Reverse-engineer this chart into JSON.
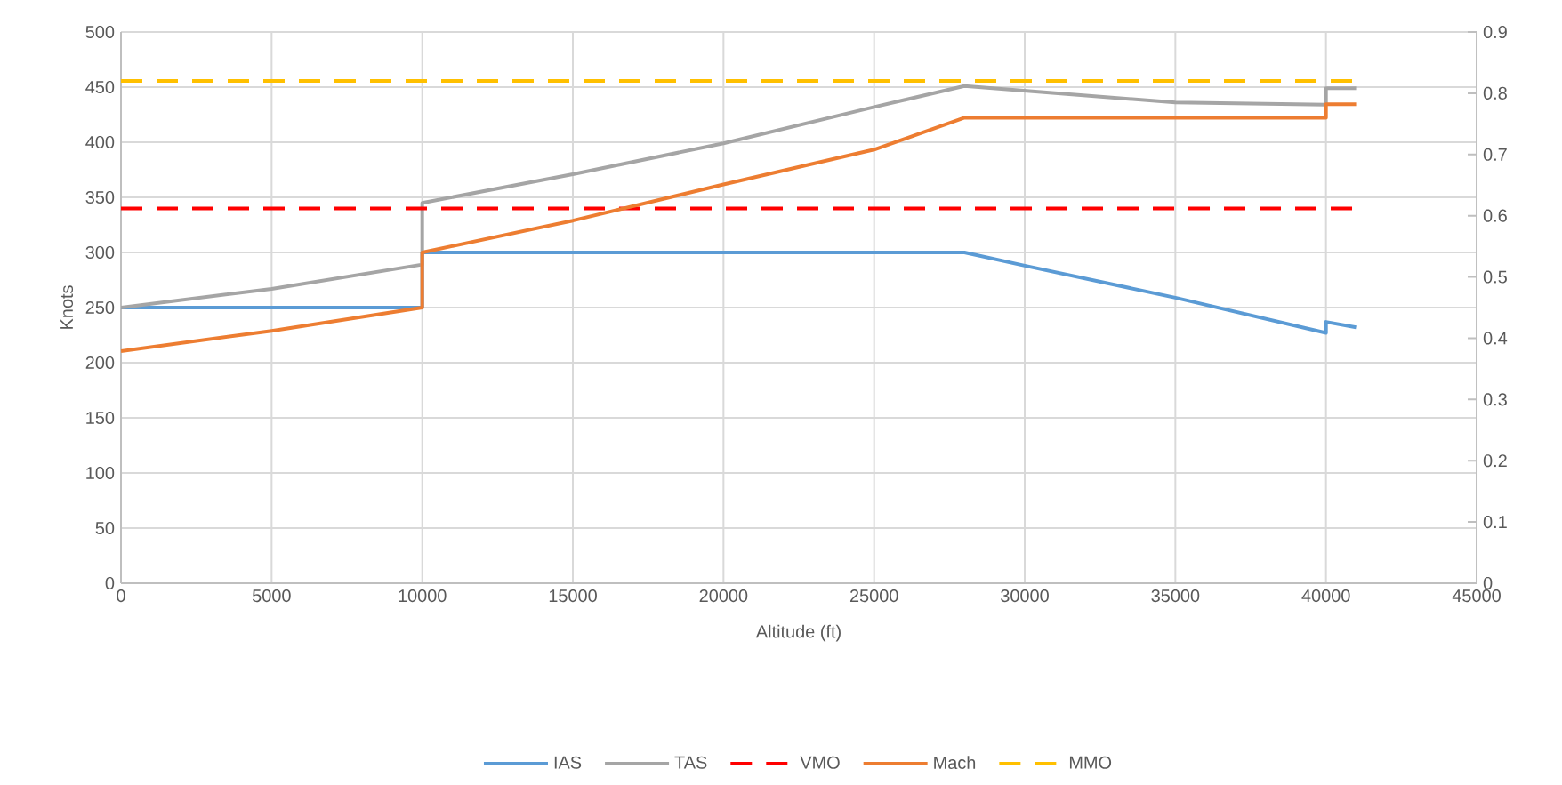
{
  "chart_data": {
    "type": "line",
    "xlabel": "Altitude (ft)",
    "ylabel": "Knots",
    "xlim": [
      0,
      45000
    ],
    "xticks": [
      0,
      5000,
      10000,
      15000,
      20000,
      25000,
      30000,
      35000,
      40000,
      45000
    ],
    "ylim": [
      0,
      500
    ],
    "yticks": [
      0,
      50,
      100,
      150,
      200,
      250,
      300,
      350,
      400,
      450,
      500
    ],
    "y2lim": [
      0,
      0.9
    ],
    "y2ticks": [
      0,
      0.1,
      0.2,
      0.3,
      0.4,
      0.5,
      0.6,
      0.7,
      0.8,
      0.9
    ],
    "grid": true,
    "legend": "bottom",
    "series": [
      {
        "name": "IAS",
        "color": "#5b9bd5",
        "x": [
          0,
          10000,
          10000,
          28000,
          30000,
          35000,
          40000,
          40000,
          41000
        ],
        "values": [
          250,
          250,
          300,
          300,
          288,
          259,
          227,
          237,
          232
        ]
      },
      {
        "name": "TAS",
        "color": "#a5a5a5",
        "x": [
          0,
          5000,
          10000,
          10000,
          15000,
          20000,
          25000,
          28000,
          35000,
          40000,
          40000,
          41000
        ],
        "values": [
          250,
          267,
          289,
          345,
          371,
          399,
          432,
          451,
          436,
          434,
          449,
          449
        ]
      },
      {
        "name": "VMO",
        "color": "#ff0000",
        "line_style": "dashed",
        "x": [
          0,
          41000
        ],
        "values": [
          340,
          340
        ]
      },
      {
        "name": "Mach",
        "color": "#ed7d31",
        "axis": "y2",
        "x": [
          0,
          5000,
          10000,
          10000,
          15000,
          20000,
          25000,
          28000,
          40000,
          40000,
          41000
        ],
        "values": [
          0.379,
          0.412,
          0.45,
          0.54,
          0.592,
          0.651,
          0.708,
          0.76,
          0.76,
          0.782,
          0.782
        ]
      },
      {
        "name": "MMO",
        "color": "#ffc000",
        "axis": "y2",
        "line_style": "dashed",
        "x": [
          0,
          41000
        ],
        "values": [
          0.82,
          0.82
        ]
      }
    ]
  }
}
